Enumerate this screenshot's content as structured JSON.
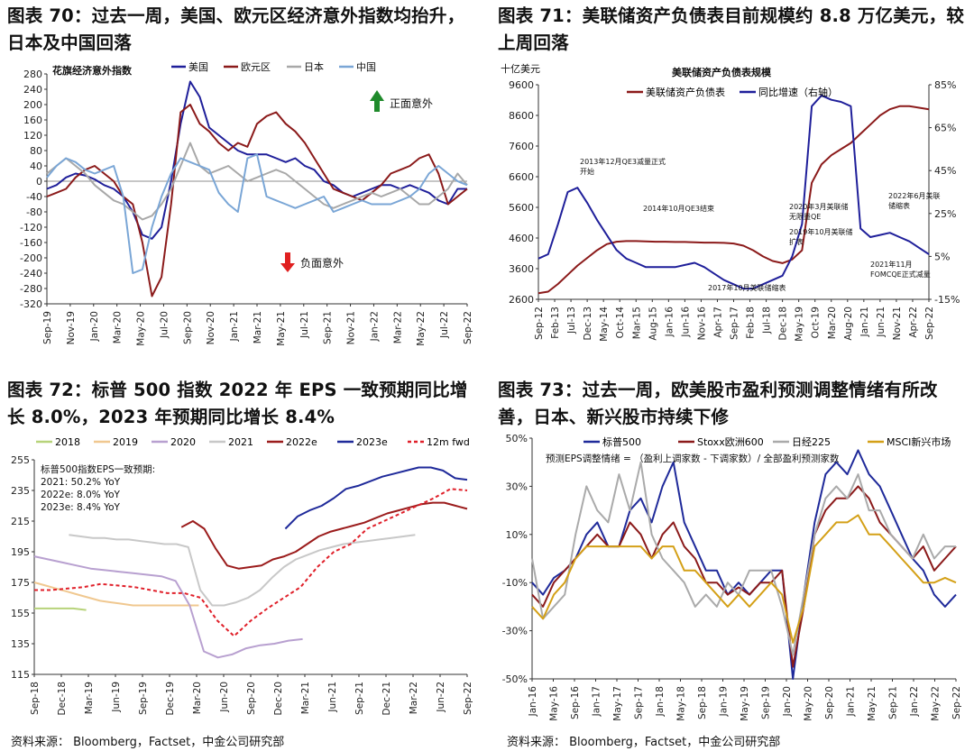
{
  "titles": {
    "fig70": "图表 70：过去一周，美国、欧元区经济意外指数均抬升，日本及中国回落",
    "fig71": "图表 71：美联储资产负债表目前规模约 8.8 万亿美元，较上周回落",
    "fig72": "图表 72：标普 500 指数 2022 年 EPS 一致预期同比增长 8.0%，2023 年预期同比增长 8.4%",
    "fig73": "图表 73：过去一周，欧美股市盈利预测调整情绪有所改善，日本、新兴股市持续下修"
  },
  "source_left": "资料来源： Bloomberg，Factset，中金公司研究部",
  "source_right": "资料来源： Bloomberg，Factset，中金公司研究部",
  "chart_data": [
    {
      "id": "fig70",
      "type": "line",
      "title": "花旗经济意外指数",
      "ylim": [
        -320,
        280
      ],
      "yticks": [
        280,
        240,
        200,
        160,
        120,
        80,
        40,
        0,
        -40,
        -80,
        -120,
        -160,
        -200,
        -240,
        -280,
        -320
      ],
      "xticks": [
        "Sep-19",
        "Nov-19",
        "Jan-20",
        "Mar-20",
        "May-20",
        "Jul-20",
        "Sep-20",
        "Nov-20",
        "Jan-21",
        "Mar-21",
        "May-21",
        "Jul-21",
        "Sep-21",
        "Nov-21",
        "Jan-22",
        "Mar-22",
        "May-22",
        "Jul-22",
        "Sep-22"
      ],
      "annotations": {
        "up": "正面意外",
        "down": "负面意外"
      },
      "series": [
        {
          "name": "美国",
          "color": "#1f1f9a",
          "values": [
            -20,
            -10,
            10,
            20,
            15,
            5,
            -10,
            -20,
            -40,
            -80,
            -140,
            -150,
            -120,
            0,
            150,
            260,
            220,
            140,
            120,
            100,
            80,
            70,
            70,
            70,
            60,
            50,
            60,
            40,
            30,
            0,
            -10,
            -30,
            -40,
            -30,
            -20,
            -10,
            -10,
            -20,
            -10,
            -20,
            -30,
            -50,
            -60,
            -20,
            -20
          ]
        },
        {
          "name": "欧元区",
          "color": "#8b1a1a",
          "values": [
            -40,
            -30,
            -20,
            10,
            30,
            40,
            20,
            0,
            -40,
            -60,
            -160,
            -300,
            -250,
            -60,
            180,
            200,
            150,
            130,
            100,
            80,
            100,
            90,
            150,
            170,
            180,
            150,
            130,
            100,
            60,
            20,
            -20,
            -30,
            -40,
            -50,
            -30,
            -10,
            20,
            30,
            40,
            60,
            70,
            20,
            -60,
            -40,
            -20
          ]
        },
        {
          "name": "日本",
          "color": "#a8a8a8",
          "values": [
            20,
            40,
            60,
            40,
            20,
            -10,
            -30,
            -50,
            -60,
            -80,
            -100,
            -90,
            -60,
            -20,
            40,
            100,
            40,
            20,
            30,
            40,
            20,
            0,
            10,
            20,
            30,
            20,
            0,
            -20,
            -40,
            -60,
            -70,
            -60,
            -50,
            -40,
            -30,
            -40,
            -30,
            -20,
            -40,
            -60,
            -60,
            -40,
            -20,
            20,
            -10
          ]
        },
        {
          "name": "中国",
          "color": "#7aa6d6",
          "values": [
            10,
            40,
            60,
            50,
            30,
            20,
            30,
            40,
            -40,
            -240,
            -230,
            -120,
            -40,
            20,
            60,
            50,
            40,
            30,
            -30,
            -60,
            -80,
            60,
            70,
            -40,
            -50,
            -60,
            -70,
            -60,
            -50,
            -40,
            -80,
            -70,
            -60,
            -50,
            -60,
            -60,
            -60,
            -50,
            -40,
            -20,
            20,
            40,
            20,
            0,
            -10
          ]
        }
      ]
    },
    {
      "id": "fig71",
      "type": "line",
      "title": "美联储资产负债表规模",
      "ylabel": "十亿美元",
      "ylim": [
        2600,
        9600
      ],
      "yticks": [
        9600,
        8600,
        7600,
        6600,
        5600,
        4600,
        3600,
        2600
      ],
      "y2lim": [
        -15,
        85
      ],
      "y2ticks": [
        "85%",
        "65%",
        "45%",
        "25%",
        "5%",
        "-15%"
      ],
      "xticks": [
        "Sep-12",
        "Feb-13",
        "Jul-13",
        "Dec-13",
        "May-14",
        "Oct-14",
        "Mar-15",
        "Aug-15",
        "Jan-16",
        "Jun-16",
        "Nov-16",
        "Apr-17",
        "Sep-17",
        "Feb-18",
        "Jul-18",
        "Dec-18",
        "May-19",
        "Oct-19",
        "Mar-20",
        "Aug-20",
        "Jan-21",
        "Jun-21",
        "Nov-21",
        "Apr-22",
        "Sep-22"
      ],
      "annotations": [
        "2013年12月QE3减量正式开始",
        "2014年10月QE3结束",
        "2017年10月美联储缩表",
        "2020年3月美联储无限量QE",
        "2019年10月美联储扩表",
        "2022年6月美联储缩表",
        "2021年11月FOMCQE正式减量"
      ],
      "series": [
        {
          "name": "美联储资产负债表",
          "color": "#8b1a1a",
          "axis": "left",
          "values": [
            2800,
            2850,
            3100,
            3400,
            3700,
            3950,
            4200,
            4400,
            4480,
            4500,
            4500,
            4490,
            4480,
            4480,
            4470,
            4470,
            4460,
            4450,
            4450,
            4440,
            4420,
            4350,
            4200,
            4000,
            3850,
            3780,
            3900,
            4200,
            6400,
            7000,
            7300,
            7500,
            7700,
            8000,
            8300,
            8600,
            8800,
            8900,
            8900,
            8850,
            8800
          ]
        },
        {
          "name": "同比增速（右轴）",
          "color": "#1f1f9a",
          "axis": "right",
          "values": [
            4,
            6,
            20,
            35,
            37,
            30,
            22,
            15,
            8,
            4,
            2,
            0,
            0,
            0,
            0,
            1,
            2,
            0,
            -3,
            -6,
            -8,
            -10,
            -10,
            -8,
            -6,
            -4,
            5,
            20,
            75,
            80,
            78,
            77,
            75,
            18,
            14,
            15,
            16,
            14,
            12,
            9,
            6
          ]
        }
      ]
    },
    {
      "id": "fig72",
      "type": "line",
      "ylim": [
        115,
        255
      ],
      "yticks": [
        255,
        235,
        215,
        195,
        175,
        155,
        135,
        115
      ],
      "xticks": [
        "Sep-18",
        "Dec-18",
        "Mar-19",
        "Jun-19",
        "Sep-19",
        "Dec-19",
        "Mar-20",
        "Jun-20",
        "Sep-20",
        "Dec-20",
        "Mar-21",
        "Jun-21",
        "Sep-21",
        "Dec-21",
        "Mar-22",
        "Jun-22",
        "Sep-22"
      ],
      "annotation_lines": [
        "标普500指数EPS一致预期:",
        "2021: 50.2% YoY",
        "2022e: 8.0% YoY",
        "2023e: 8.4% YoY"
      ],
      "series": [
        {
          "name": "2018",
          "color": "#b7d37a",
          "values": [
            158,
            158,
            158,
            158,
            157
          ]
        },
        {
          "name": "2019",
          "color": "#f0c890",
          "values": [
            175,
            173,
            171,
            169,
            167,
            165,
            163,
            162,
            161,
            160,
            160,
            160,
            160,
            160,
            160,
            160
          ]
        },
        {
          "name": "2020",
          "color": "#b8a0d0",
          "values": [
            192,
            190,
            188,
            186,
            184,
            183,
            182,
            181,
            180,
            179,
            176,
            160,
            130,
            126,
            128,
            132,
            134,
            135,
            137,
            138
          ]
        },
        {
          "name": "2021",
          "color": "#c8c8c8",
          "values": [
            206,
            205,
            204,
            204,
            203,
            203,
            202,
            201,
            200,
            200,
            198,
            170,
            160,
            160,
            162,
            165,
            170,
            178,
            185,
            190,
            193,
            196,
            198,
            200,
            201,
            202,
            203,
            204,
            205,
            206
          ]
        },
        {
          "name": "2022e",
          "color": "#9b1c1c",
          "values": [
            211,
            215,
            210,
            197,
            186,
            184,
            185,
            186,
            190,
            192,
            195,
            200,
            205,
            208,
            210,
            212,
            214,
            217,
            220,
            222,
            224,
            226,
            227,
            227,
            225,
            223
          ]
        },
        {
          "name": "2023e",
          "color": "#1f2a9a",
          "values": [
            210,
            218,
            222,
            225,
            230,
            236,
            238,
            241,
            244,
            246,
            248,
            250,
            250,
            248,
            243,
            242
          ]
        },
        {
          "name": "12m fwd",
          "color": "#e0202a",
          "dashed": true,
          "values": [
            170,
            170,
            171,
            172,
            174,
            173,
            172,
            170,
            168,
            168,
            165,
            150,
            140,
            150,
            158,
            165,
            172,
            185,
            195,
            200,
            210,
            215,
            220,
            225,
            230,
            236,
            235
          ]
        }
      ]
    },
    {
      "id": "fig73",
      "type": "line",
      "subtitle": "预测EPS调整情绪 = （盈利上调家数 - 下调家数）/ 全部盈利预测家数",
      "ylim": [
        -50,
        50
      ],
      "yticks": [
        "50%",
        "30%",
        "10%",
        "-10%",
        "-30%",
        "-50%"
      ],
      "xticks": [
        "Jan-16",
        "May-16",
        "Sep-16",
        "Jan-17",
        "May-17",
        "Sep-17",
        "Jan-18",
        "May-18",
        "Sep-18",
        "Jan-19",
        "May-19",
        "Sep-19",
        "Jan-20",
        "May-20",
        "Sep-20",
        "Jan-21",
        "May-21",
        "Sep-21",
        "Jan-22",
        "May-22",
        "Sep-22"
      ],
      "series": [
        {
          "name": "标普500",
          "color": "#1f2a9a",
          "values": [
            -10,
            -15,
            -8,
            -5,
            0,
            10,
            15,
            5,
            5,
            20,
            25,
            15,
            30,
            40,
            15,
            5,
            -5,
            -5,
            -15,
            -10,
            -15,
            -10,
            -5,
            -5,
            -50,
            -15,
            15,
            35,
            40,
            35,
            45,
            35,
            30,
            20,
            10,
            0,
            -5,
            -15,
            -20,
            -15
          ]
        },
        {
          "name": "Stoxx欧洲600",
          "color": "#8b1a1a",
          "values": [
            -15,
            -20,
            -10,
            -5,
            0,
            5,
            10,
            5,
            5,
            15,
            10,
            0,
            10,
            15,
            5,
            0,
            -10,
            -10,
            -15,
            -12,
            -15,
            -10,
            -10,
            -5,
            -45,
            -20,
            10,
            20,
            25,
            25,
            30,
            25,
            15,
            10,
            5,
            0,
            5,
            -5,
            0,
            5
          ]
        },
        {
          "name": "日经225",
          "color": "#aaaaaa",
          "values": [
            0,
            -25,
            -20,
            -15,
            10,
            30,
            20,
            15,
            35,
            20,
            40,
            10,
            0,
            -5,
            -10,
            -20,
            -15,
            -20,
            -10,
            -15,
            -5,
            -5,
            -5,
            -20,
            -40,
            -15,
            10,
            25,
            30,
            25,
            35,
            20,
            20,
            10,
            5,
            0,
            10,
            0,
            5,
            5
          ]
        },
        {
          "name": "MSCI新兴市场",
          "color": "#d4a017",
          "values": [
            -20,
            -25,
            -15,
            -10,
            0,
            5,
            5,
            5,
            5,
            5,
            5,
            0,
            5,
            5,
            -5,
            -5,
            -10,
            -15,
            -20,
            -15,
            -20,
            -15,
            -10,
            -15,
            -35,
            -20,
            5,
            10,
            15,
            15,
            18,
            10,
            10,
            5,
            0,
            -5,
            -10,
            -10,
            -8,
            -10
          ]
        }
      ]
    }
  ]
}
